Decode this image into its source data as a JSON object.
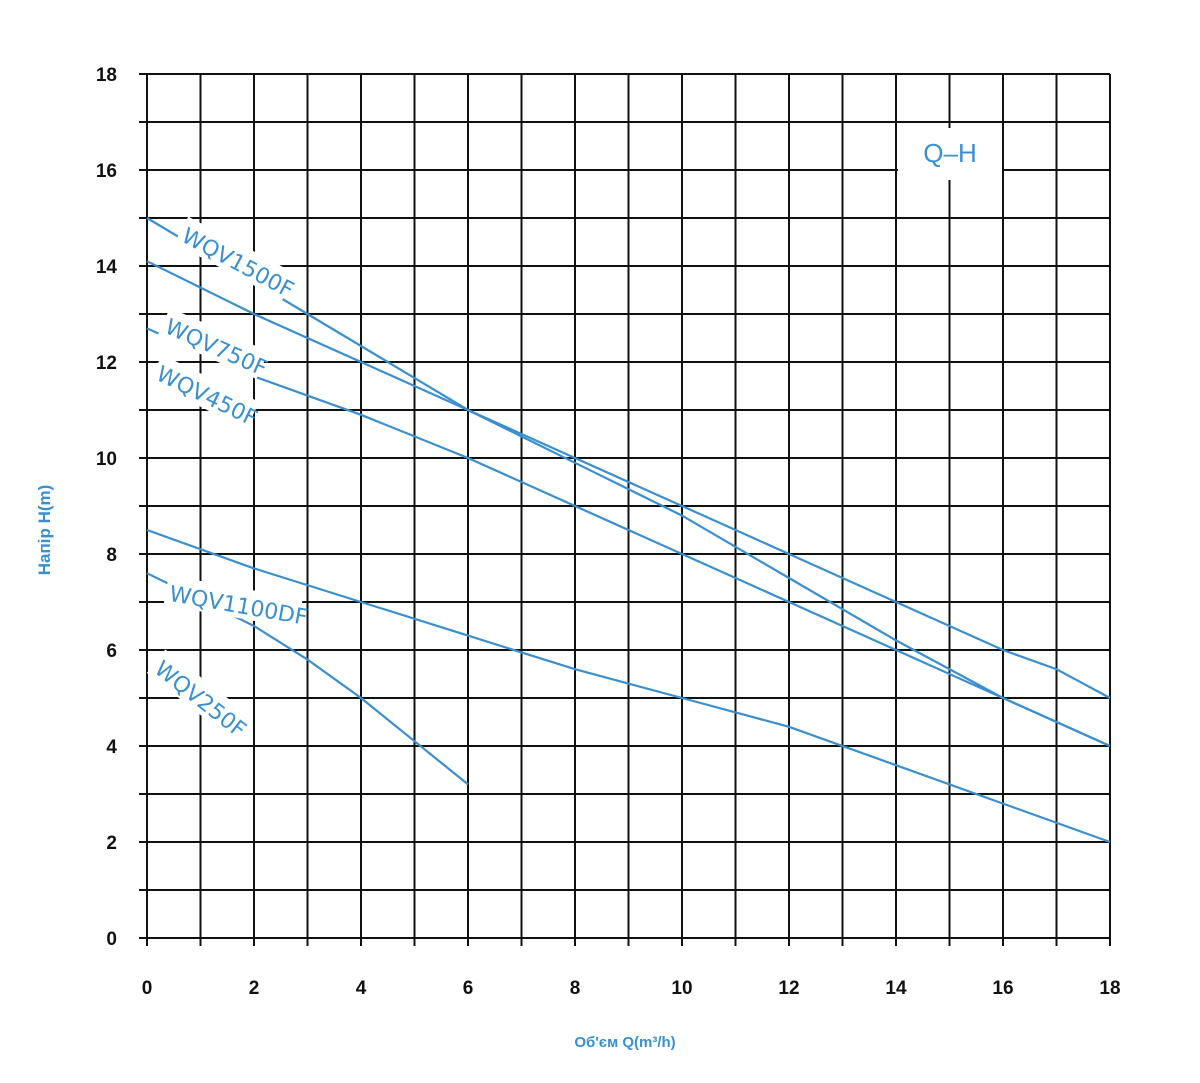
{
  "chart_data": {
    "type": "line",
    "title": "Q–H",
    "xlabel": "Об'єм Q(m³/h)",
    "ylabel": "Напір H(m)",
    "xlim": [
      0,
      18
    ],
    "ylim": [
      0,
      18
    ],
    "xticks": [
      0,
      2,
      4,
      6,
      8,
      10,
      12,
      14,
      16,
      18
    ],
    "yticks": [
      0,
      2,
      4,
      6,
      8,
      10,
      12,
      14,
      16,
      18
    ],
    "grid": true,
    "line_color": "#3a8fd0",
    "series": [
      {
        "name": "WQV1500F",
        "x": [
          0,
          3,
          6,
          8,
          10,
          12,
          14,
          16,
          18
        ],
        "y": [
          15,
          13,
          11,
          9.9,
          8.8,
          7.5,
          6.2,
          5,
          4
        ]
      },
      {
        "name": "WQV750F",
        "x": [
          0,
          2,
          4,
          6,
          8,
          10,
          12,
          14,
          16,
          17,
          18
        ],
        "y": [
          14.1,
          13,
          12,
          11,
          10,
          9,
          8,
          7,
          6,
          5.6,
          5
        ]
      },
      {
        "name": "WQV450F",
        "x": [
          0,
          2,
          4,
          6,
          8,
          10,
          12,
          14,
          16,
          18
        ],
        "y": [
          12.7,
          11.7,
          10.9,
          10,
          9,
          8,
          7,
          6,
          5,
          4
        ]
      },
      {
        "name": "WQV1100DF",
        "x": [
          0,
          2,
          4,
          6,
          8,
          10,
          12,
          14,
          16,
          18
        ],
        "y": [
          8.5,
          7.7,
          7,
          6.3,
          5.6,
          5,
          4.4,
          3.6,
          2.8,
          2
        ]
      },
      {
        "name": "WQV250F",
        "x": [
          0,
          2,
          3,
          4,
          5,
          6
        ],
        "y": [
          7.6,
          6.5,
          5.8,
          5,
          4.1,
          3.2
        ]
      }
    ]
  }
}
